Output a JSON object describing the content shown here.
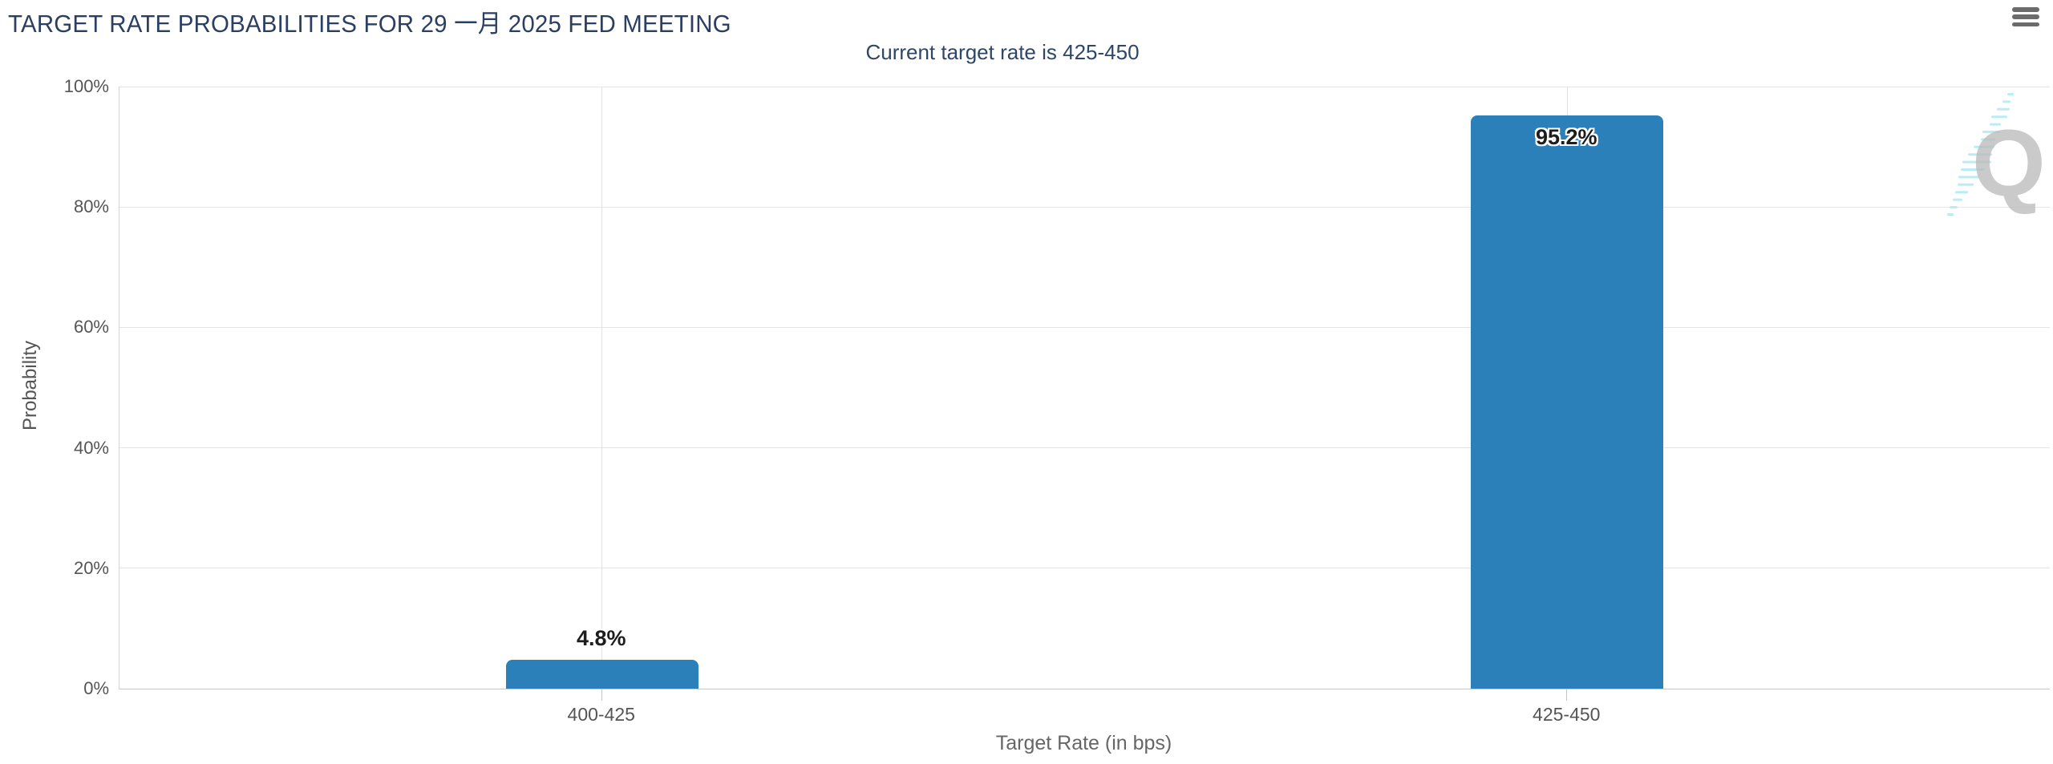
{
  "header": {
    "title": "TARGET RATE PROBABILITIES FOR 29 一月 2025 FED MEETING",
    "subtitle": "Current target rate is 425-450"
  },
  "watermark": {
    "letter": "Q"
  },
  "colors": {
    "bar": "#2b80b9",
    "title_text": "#2a3f63",
    "grid_line": "#e5e5e5",
    "axis_line": "#c6c6c6",
    "tick_label": "#555555",
    "axis_title": "#666666",
    "menu_icon": "#6b6b6b",
    "watermark_gray": "#bdbdbd",
    "watermark_cyan": "#b9edf4"
  },
  "chart_data": {
    "type": "bar",
    "title": "TARGET RATE PROBABILITIES FOR 29 一月 2025 FED MEETING",
    "subtitle": "Current target rate is 425-450",
    "categories": [
      "400-425",
      "425-450"
    ],
    "values": [
      4.8,
      95.2
    ],
    "data_labels": [
      "4.8%",
      "95.2%"
    ],
    "xlabel": "Target Rate (in bps)",
    "ylabel": "Probability",
    "ylim": [
      0,
      100
    ],
    "ytick_values": [
      0,
      20,
      40,
      60,
      80,
      100
    ],
    "ytick_labels": [
      "0%",
      "20%",
      "40%",
      "60%",
      "80%",
      "100%"
    ],
    "grid": true,
    "legend": "none",
    "bar_color": "#2b80b9"
  }
}
